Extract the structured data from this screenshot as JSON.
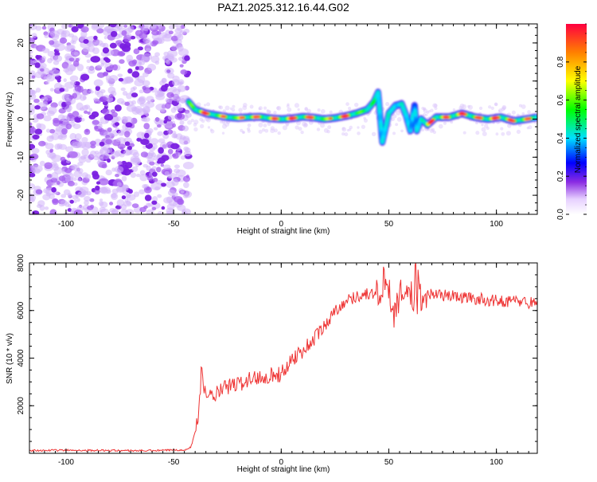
{
  "title": "PAZ1.2025.312.16.44.G02",
  "chart_data": [
    {
      "type": "heatmap",
      "title": "PAZ1.2025.312.16.44.G02",
      "xlabel": "Height of straight line (km)",
      "ylabel": "Frequency (Hz)",
      "xlim": [
        -117,
        119
      ],
      "ylim": [
        -25,
        25
      ],
      "xticks": [
        -100,
        -50,
        0,
        50,
        100
      ],
      "yticks": [
        -20,
        -10,
        0,
        10,
        20
      ],
      "noise_region_x": [
        -117,
        -43
      ],
      "ridge": {
        "x": [
          -43,
          -40,
          -35,
          -30,
          -25,
          -20,
          -15,
          -10,
          -5,
          0,
          5,
          10,
          15,
          20,
          25,
          30,
          35,
          40,
          43,
          45,
          47,
          50,
          53,
          56,
          58,
          60,
          62,
          63,
          65,
          68,
          72,
          78,
          84,
          90,
          96,
          102,
          108,
          114,
          119
        ],
        "frequency": [
          4.5,
          2.5,
          1.5,
          1.0,
          0.5,
          0.3,
          0.5,
          0.6,
          0.2,
          0.0,
          0.2,
          0.6,
          0.4,
          0.0,
          0.3,
          0.8,
          1.5,
          2.5,
          4.5,
          7.0,
          -6.0,
          1.5,
          3.5,
          4.0,
          1.0,
          -3.0,
          3.5,
          -3.0,
          0.0,
          -1.5,
          0.5,
          0.5,
          1.5,
          0.5,
          0.0,
          0.5,
          -0.5,
          0.0,
          0.5
        ],
        "amplitude": [
          0.55,
          0.7,
          0.9,
          0.6,
          0.8,
          0.65,
          0.95,
          0.7,
          0.85,
          0.75,
          0.9,
          0.7,
          0.85,
          0.6,
          0.8,
          0.9,
          0.7,
          0.5,
          0.55,
          0.4,
          0.35,
          0.45,
          0.3,
          0.45,
          0.4,
          0.35,
          0.3,
          0.35,
          0.4,
          0.95,
          0.7,
          0.85,
          0.9,
          0.75,
          0.85,
          0.9,
          0.8,
          0.75,
          0.6
        ]
      },
      "colorbar": {
        "label": "Normalized spectral amplitude",
        "ticks": [
          "0.0",
          "0.2",
          "0.4",
          "0.6",
          "0.8"
        ],
        "range": [
          0,
          1
        ]
      }
    },
    {
      "type": "line",
      "xlabel": "Height of straight line (km)",
      "ylabel": "SNR (10 * v/v)",
      "xlim": [
        -117,
        119
      ],
      "ylim": [
        0,
        8000
      ],
      "xticks": [
        -100,
        -50,
        0,
        50,
        100
      ],
      "yticks": [
        2000,
        4000,
        6000,
        8000
      ],
      "series": [
        {
          "name": "SNR",
          "color": "#ee3333",
          "x": [
            -117,
            -100,
            -80,
            -60,
            -45,
            -42,
            -40,
            -38,
            -37,
            -36,
            -35,
            -30,
            -25,
            -20,
            -15,
            -10,
            -5,
            0,
            5,
            10,
            15,
            20,
            25,
            30,
            35,
            40,
            45,
            48,
            50,
            52,
            55,
            58,
            60,
            62,
            65,
            70,
            80,
            90,
            100,
            110,
            119
          ],
          "y": [
            120,
            130,
            120,
            110,
            150,
            250,
            900,
            2000,
            3600,
            3000,
            2300,
            2500,
            2800,
            2900,
            3100,
            3200,
            3300,
            3300,
            4000,
            4300,
            4800,
            5300,
            6000,
            6400,
            6600,
            6700,
            6700,
            6600,
            7100,
            5800,
            6600,
            6900,
            6700,
            6200,
            6600,
            6700,
            6600,
            6500,
            6400,
            6400,
            6300
          ]
        }
      ]
    }
  ]
}
